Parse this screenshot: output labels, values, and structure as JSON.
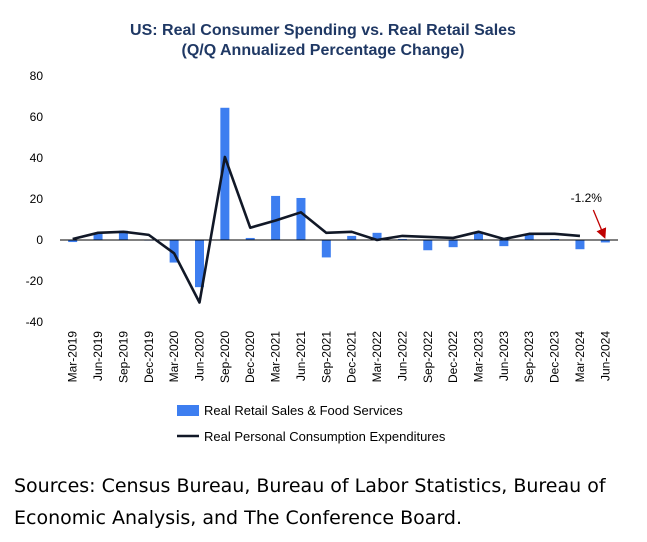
{
  "chart_data": {
    "type": "bar+line",
    "title": "US: Real Consumer Spending vs. Real Retail Sales",
    "subtitle": "(Q/Q Annualized Percentage Change)",
    "ylim": [
      -40,
      80
    ],
    "yticks": [
      "80",
      "60",
      "40",
      "20",
      "0",
      "-20",
      "-40"
    ],
    "categories": [
      "Mar-2019",
      "Jun-2019",
      "Sep-2019",
      "Dec-2019",
      "Mar-2020",
      "Jun-2020",
      "Sep-2020",
      "Dec-2020",
      "Mar-2021",
      "Jun-2021",
      "Sep-2021",
      "Dec-2021",
      "Mar-2022",
      "Jun-2022",
      "Sep-2022",
      "Dec-2022",
      "Mar-2023",
      "Jun-2023",
      "Sep-2023",
      "Dec-2023",
      "Mar-2024",
      "Jun-2024"
    ],
    "series": [
      {
        "name": "Real Retail Sales & Food Services",
        "kind": "bar",
        "color": "#3d7ef0",
        "values": [
          -1,
          3.5,
          4.5,
          0,
          -11,
          -23,
          64.5,
          1,
          21.5,
          20.5,
          -8.5,
          2,
          3.5,
          0.5,
          -5,
          -3.5,
          3.5,
          -3,
          2.5,
          0.5,
          -4.5,
          -1.2
        ]
      },
      {
        "name": "Real Personal Consumption Expenditures",
        "kind": "line",
        "color": "#111827",
        "values": [
          0.5,
          3.5,
          4,
          2.5,
          -6.5,
          -30.5,
          40.5,
          6,
          9.5,
          13.5,
          3.5,
          4,
          0,
          2,
          1.5,
          1,
          4,
          0.5,
          3,
          3,
          2,
          null
        ]
      }
    ],
    "annotation": {
      "text": "-1.2%",
      "category": "Jun-2024",
      "value": -1.2
    },
    "legend_position": "bottom",
    "grid": false
  },
  "sources": "Sources: Census Bureau, Bureau of Labor Statistics, Bureau of Economic Analysis, and The Conference Board.",
  "colors": {
    "annot_arrow": "#c00000",
    "axis": "#000000"
  }
}
